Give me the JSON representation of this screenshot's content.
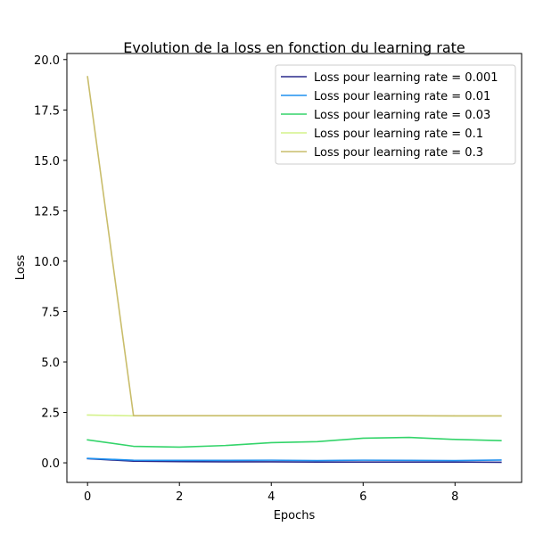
{
  "chart_data": {
    "type": "line",
    "title": "Evolution de la loss en fonction du learning rate",
    "xlabel": "Epochs",
    "ylabel": "Loss",
    "xlim": [
      -0.45,
      9.45
    ],
    "ylim": [
      -0.97,
      20.3
    ],
    "x_ticks": [
      0,
      2,
      4,
      6,
      8
    ],
    "x_tick_labels": [
      "0",
      "2",
      "4",
      "6",
      "8"
    ],
    "y_ticks": [
      0.0,
      2.5,
      5.0,
      7.5,
      10.0,
      12.5,
      15.0,
      17.5,
      20.0
    ],
    "y_tick_labels": [
      "0.0",
      "2.5",
      "5.0",
      "7.5",
      "10.0",
      "12.5",
      "15.0",
      "17.5",
      "20.0"
    ],
    "grid": false,
    "legend_position": "top-right",
    "x": [
      0,
      1,
      2,
      3,
      4,
      5,
      6,
      7,
      8,
      9
    ],
    "series": [
      {
        "name": "Loss pour learning rate = 0.001",
        "color": "#2a2a8c",
        "values": [
          0.21,
          0.08,
          0.06,
          0.05,
          0.05,
          0.04,
          0.04,
          0.04,
          0.04,
          0.03
        ]
      },
      {
        "name": "Loss pour learning rate = 0.01",
        "color": "#1e90ef",
        "values": [
          0.22,
          0.13,
          0.12,
          0.12,
          0.13,
          0.11,
          0.13,
          0.12,
          0.11,
          0.14
        ]
      },
      {
        "name": "Loss pour learning rate = 0.03",
        "color": "#33d46a",
        "values": [
          1.14,
          0.82,
          0.78,
          0.86,
          1.0,
          1.05,
          1.22,
          1.26,
          1.16,
          1.1
        ]
      },
      {
        "name": "Loss pour learning rate = 0.1",
        "color": "#d4f28a",
        "values": [
          2.37,
          2.33,
          2.33,
          2.33,
          2.33,
          2.33,
          2.33,
          2.33,
          2.32,
          2.32
        ]
      },
      {
        "name": "Loss pour learning rate = 0.3",
        "color": "#c9bd6b",
        "values": [
          19.15,
          2.34,
          2.34,
          2.34,
          2.34,
          2.34,
          2.34,
          2.34,
          2.33,
          2.33
        ]
      }
    ]
  }
}
